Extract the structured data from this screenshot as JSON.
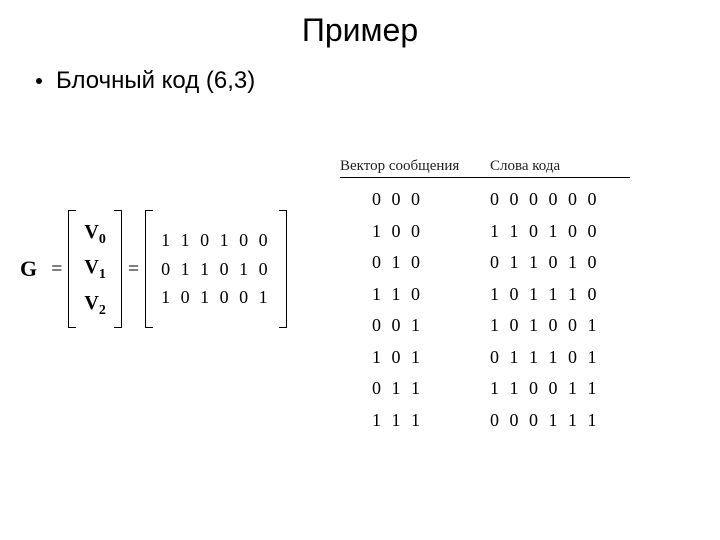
{
  "title": "Пример",
  "bullet": "Блочный код (6,3)",
  "matrix": {
    "symbol": "G",
    "vlabels": [
      "V",
      "V",
      "V"
    ],
    "vsubs": [
      "0",
      "1",
      "2"
    ],
    "rows": [
      "1 1 0 1 0 0",
      "0 1 1 0 1 0",
      "1 0 1 0 0 1"
    ]
  },
  "table": {
    "headers": [
      "Вектор сообщения",
      "Слова кода"
    ],
    "rows": [
      {
        "msg": "0 0 0",
        "code": "0 0 0 0 0 0"
      },
      {
        "msg": "1 0 0",
        "code": "1 1 0 1 0 0"
      },
      {
        "msg": "0 1 0",
        "code": "0 1 1 0 1 0"
      },
      {
        "msg": "1 1 0",
        "code": "1 0 1 1 1 0"
      },
      {
        "msg": "0 0 1",
        "code": "1 0 1 0 0 1"
      },
      {
        "msg": "1 0 1",
        "code": "0 1 1 1 0 1"
      },
      {
        "msg": "0 1 1",
        "code": "1 1 0 0 1 1"
      },
      {
        "msg": "1 1 1",
        "code": "0 0 0 1 1 1"
      }
    ]
  }
}
